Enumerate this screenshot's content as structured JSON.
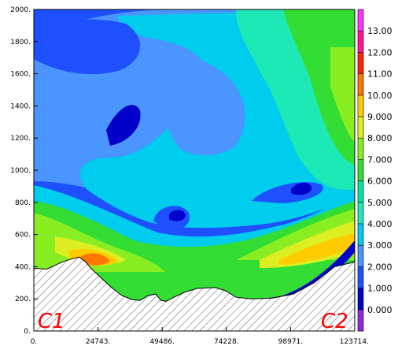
{
  "chart_data": {
    "type": "heatmap",
    "title": "",
    "xlabel": "",
    "ylabel": "",
    "xlim": [
      0,
      123714
    ],
    "ylim": [
      0,
      2000
    ],
    "x_tick_labels": [
      "0.",
      "24743.",
      "49486.",
      "74228.",
      "98971.",
      "123714."
    ],
    "y_tick_labels": [
      "0.",
      "200.",
      "400.",
      "600.",
      "800.",
      "1000.",
      "1200.",
      "1400.",
      "1600.",
      "1800.",
      "2000."
    ],
    "colorbar": {
      "levels": [
        -1,
        0,
        1,
        2,
        3,
        4,
        5,
        6,
        7,
        8,
        9,
        10,
        11,
        12,
        13,
        14
      ],
      "tick_labels": [
        "0.000",
        "1.000",
        "2.000",
        "3.000",
        "4.000",
        "5.000",
        "6.000",
        "7.000",
        "8.000",
        "9.000",
        "10.00",
        "11.00",
        "12.00",
        "13.00"
      ],
      "colors": [
        "#8a2be2",
        "#0000cd",
        "#1e50ff",
        "#4a95ff",
        "#00ccee",
        "#1de9b6",
        "#00e6a0",
        "#33dd33",
        "#88ee22",
        "#ddee22",
        "#ffcc00",
        "#ff7700",
        "#ff2200",
        "#ff1493",
        "#ff33ff"
      ]
    },
    "terrain_profile": [
      [
        0,
        390
      ],
      [
        5000,
        385
      ],
      [
        11000,
        430
      ],
      [
        15000,
        450
      ],
      [
        17500,
        460
      ],
      [
        20000,
        430
      ],
      [
        22000,
        390
      ],
      [
        26000,
        330
      ],
      [
        30000,
        270
      ],
      [
        34000,
        220
      ],
      [
        38000,
        195
      ],
      [
        41000,
        190
      ],
      [
        44000,
        220
      ],
      [
        47000,
        230
      ],
      [
        49000,
        190
      ],
      [
        51000,
        185
      ],
      [
        54000,
        210
      ],
      [
        58000,
        240
      ],
      [
        63000,
        265
      ],
      [
        70000,
        270
      ],
      [
        74000,
        250
      ],
      [
        78000,
        210
      ],
      [
        84000,
        200
      ],
      [
        92000,
        205
      ],
      [
        100000,
        230
      ],
      [
        108000,
        300
      ],
      [
        116000,
        400
      ],
      [
        123714,
        430
      ]
    ],
    "labels": [
      "C1",
      "C2"
    ]
  }
}
